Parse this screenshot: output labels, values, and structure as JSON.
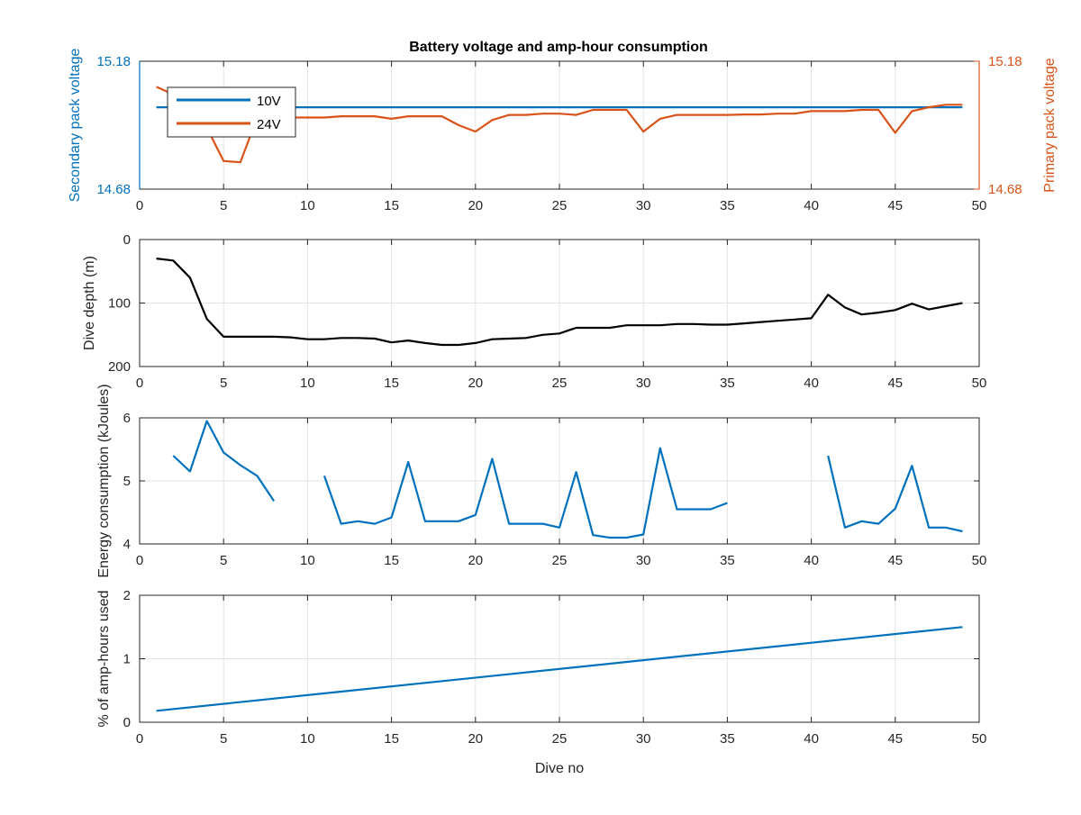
{
  "figure": {
    "title": "Battery voltage and amp-hour consumption",
    "colors": {
      "blue": "#0072BD",
      "orange": "#D95319",
      "black": "#000000",
      "axis": "#262626",
      "grid": "#e3e3e3"
    }
  },
  "chart_data": [
    {
      "type": "line",
      "title": "Battery voltage and amp-hour consumption",
      "xlabel": "",
      "ylabel": "Secondary pack voltage",
      "ylabel_right": "Primary pack voltage",
      "xlim": [
        0,
        50
      ],
      "ylim": [
        14.68,
        15.18
      ],
      "ylim_right": [
        14.68,
        15.18
      ],
      "xticks": [
        "0",
        "5",
        "10",
        "15",
        "20",
        "25",
        "30",
        "35",
        "40",
        "45",
        "50"
      ],
      "yticks": [
        "14.68",
        "15.18"
      ],
      "yticks_right": [
        "14.68",
        "15.18"
      ],
      "grid": true,
      "legend": "top-left",
      "series": [
        {
          "name": "10V",
          "axis": "left",
          "color": "#0072BD",
          "x": [
            1,
            2,
            3,
            4,
            5,
            6,
            7,
            8,
            9,
            10,
            11,
            12,
            13,
            14,
            15,
            16,
            17,
            18,
            19,
            20,
            21,
            22,
            23,
            24,
            25,
            26,
            27,
            28,
            29,
            30,
            31,
            32,
            33,
            34,
            35,
            36,
            37,
            38,
            39,
            40,
            41,
            42,
            43,
            44,
            45,
            46,
            47,
            48,
            49
          ],
          "y": [
            15.0,
            15.0,
            15.0,
            15.0,
            15.0,
            15.0,
            15.0,
            15.0,
            15.0,
            15.0,
            15.0,
            15.0,
            15.0,
            15.0,
            15.0,
            15.0,
            15.0,
            15.0,
            15.0,
            15.0,
            15.0,
            15.0,
            15.0,
            15.0,
            15.0,
            15.0,
            15.0,
            15.0,
            15.0,
            15.0,
            15.0,
            15.0,
            15.0,
            15.0,
            15.0,
            15.0,
            15.0,
            15.0,
            15.0,
            15.0,
            15.0,
            15.0,
            15.0,
            15.0,
            15.0,
            15.0,
            15.0,
            15.0,
            15.0
          ]
        },
        {
          "name": "24V",
          "axis": "right",
          "color": "#D95319",
          "x": [
            1,
            2,
            3,
            4,
            5,
            6,
            7,
            8,
            9,
            10,
            11,
            12,
            13,
            14,
            15,
            16,
            17,
            18,
            19,
            20,
            21,
            22,
            23,
            24,
            25,
            26,
            27,
            28,
            29,
            30,
            31,
            32,
            33,
            34,
            35,
            36,
            37,
            38,
            39,
            40,
            41,
            42,
            43,
            44,
            45,
            46,
            47,
            48,
            49
          ],
          "y": [
            15.08,
            15.05,
            14.96,
            14.92,
            14.79,
            14.785,
            14.96,
            14.96,
            14.96,
            14.96,
            14.96,
            14.965,
            14.965,
            14.965,
            14.955,
            14.965,
            14.965,
            14.965,
            14.93,
            14.905,
            14.95,
            14.97,
            14.97,
            14.975,
            14.975,
            14.97,
            14.99,
            14.99,
            14.99,
            14.905,
            14.955,
            14.97,
            14.97,
            14.97,
            14.97,
            14.972,
            14.972,
            14.975,
            14.975,
            14.985,
            14.985,
            14.985,
            14.99,
            14.99,
            14.9,
            14.985,
            15.0,
            15.01,
            15.01
          ]
        }
      ]
    },
    {
      "type": "line",
      "xlabel": "",
      "ylabel": "Dive depth (m)",
      "xlim": [
        0,
        50
      ],
      "ylim": [
        0,
        200
      ],
      "y_reversed": true,
      "xticks": [
        "0",
        "5",
        "10",
        "15",
        "20",
        "25",
        "30",
        "35",
        "40",
        "45",
        "50"
      ],
      "yticks": [
        "0",
        "100",
        "200"
      ],
      "grid": true,
      "series": [
        {
          "color": "#000000",
          "x": [
            1,
            2,
            3,
            4,
            5,
            6,
            7,
            8,
            9,
            10,
            11,
            12,
            13,
            14,
            15,
            16,
            17,
            18,
            19,
            20,
            21,
            22,
            23,
            24,
            25,
            26,
            27,
            28,
            29,
            30,
            31,
            32,
            33,
            34,
            35,
            36,
            37,
            38,
            39,
            40,
            41,
            42,
            43,
            44,
            45,
            46,
            47,
            48,
            49
          ],
          "y": [
            30,
            33,
            60,
            125,
            153,
            153,
            153,
            153,
            154,
            157,
            157,
            155,
            155,
            156,
            162,
            159,
            163,
            166,
            166,
            163,
            157,
            156,
            155,
            150,
            148,
            139,
            139,
            139,
            135,
            135,
            135,
            133,
            133,
            134,
            134,
            132,
            130,
            128,
            126,
            124,
            87,
            107,
            118,
            115,
            111,
            101,
            110,
            105,
            100
          ]
        }
      ]
    },
    {
      "type": "line",
      "xlabel": "",
      "ylabel": "Energy consumption (kJoules)",
      "xlim": [
        0,
        50
      ],
      "ylim": [
        4,
        6
      ],
      "xticks": [
        "0",
        "5",
        "10",
        "15",
        "20",
        "25",
        "30",
        "35",
        "40",
        "45",
        "50"
      ],
      "yticks": [
        "4",
        "5",
        "6"
      ],
      "grid": true,
      "series": [
        {
          "color": "#0072BD",
          "x": [
            1,
            2,
            3,
            4,
            5,
            6,
            7,
            8,
            9,
            10,
            11,
            12,
            13,
            14,
            15,
            16,
            17,
            18,
            19,
            20,
            21,
            22,
            23,
            24,
            25,
            26,
            27,
            28,
            29,
            30,
            31,
            32,
            33,
            34,
            35,
            36,
            37,
            38,
            39,
            40,
            41,
            42,
            43,
            44,
            45,
            46,
            47,
            48,
            49
          ],
          "y": [
            null,
            5.4,
            5.15,
            5.95,
            5.45,
            5.25,
            5.08,
            4.68,
            null,
            null,
            5.08,
            4.32,
            4.36,
            4.32,
            4.42,
            5.3,
            4.36,
            4.36,
            4.36,
            4.46,
            5.35,
            4.32,
            4.32,
            4.32,
            4.26,
            5.14,
            4.14,
            4.1,
            4.1,
            4.15,
            5.52,
            4.55,
            4.55,
            4.55,
            4.65,
            null,
            null,
            null,
            null,
            null,
            5.4,
            4.26,
            4.36,
            4.32,
            4.56,
            5.24,
            4.26,
            4.26,
            4.2
          ]
        }
      ]
    },
    {
      "type": "line",
      "xlabel": "Dive no",
      "ylabel": "% of amp-hours used",
      "xlim": [
        0,
        50
      ],
      "ylim": [
        0,
        2
      ],
      "xticks": [
        "0",
        "5",
        "10",
        "15",
        "20",
        "25",
        "30",
        "35",
        "40",
        "45",
        "50"
      ],
      "yticks": [
        "0",
        "1",
        "2"
      ],
      "grid": true,
      "series": [
        {
          "color": "#0072BD",
          "x": [
            1,
            49
          ],
          "y": [
            0.18,
            1.5
          ]
        }
      ]
    }
  ]
}
